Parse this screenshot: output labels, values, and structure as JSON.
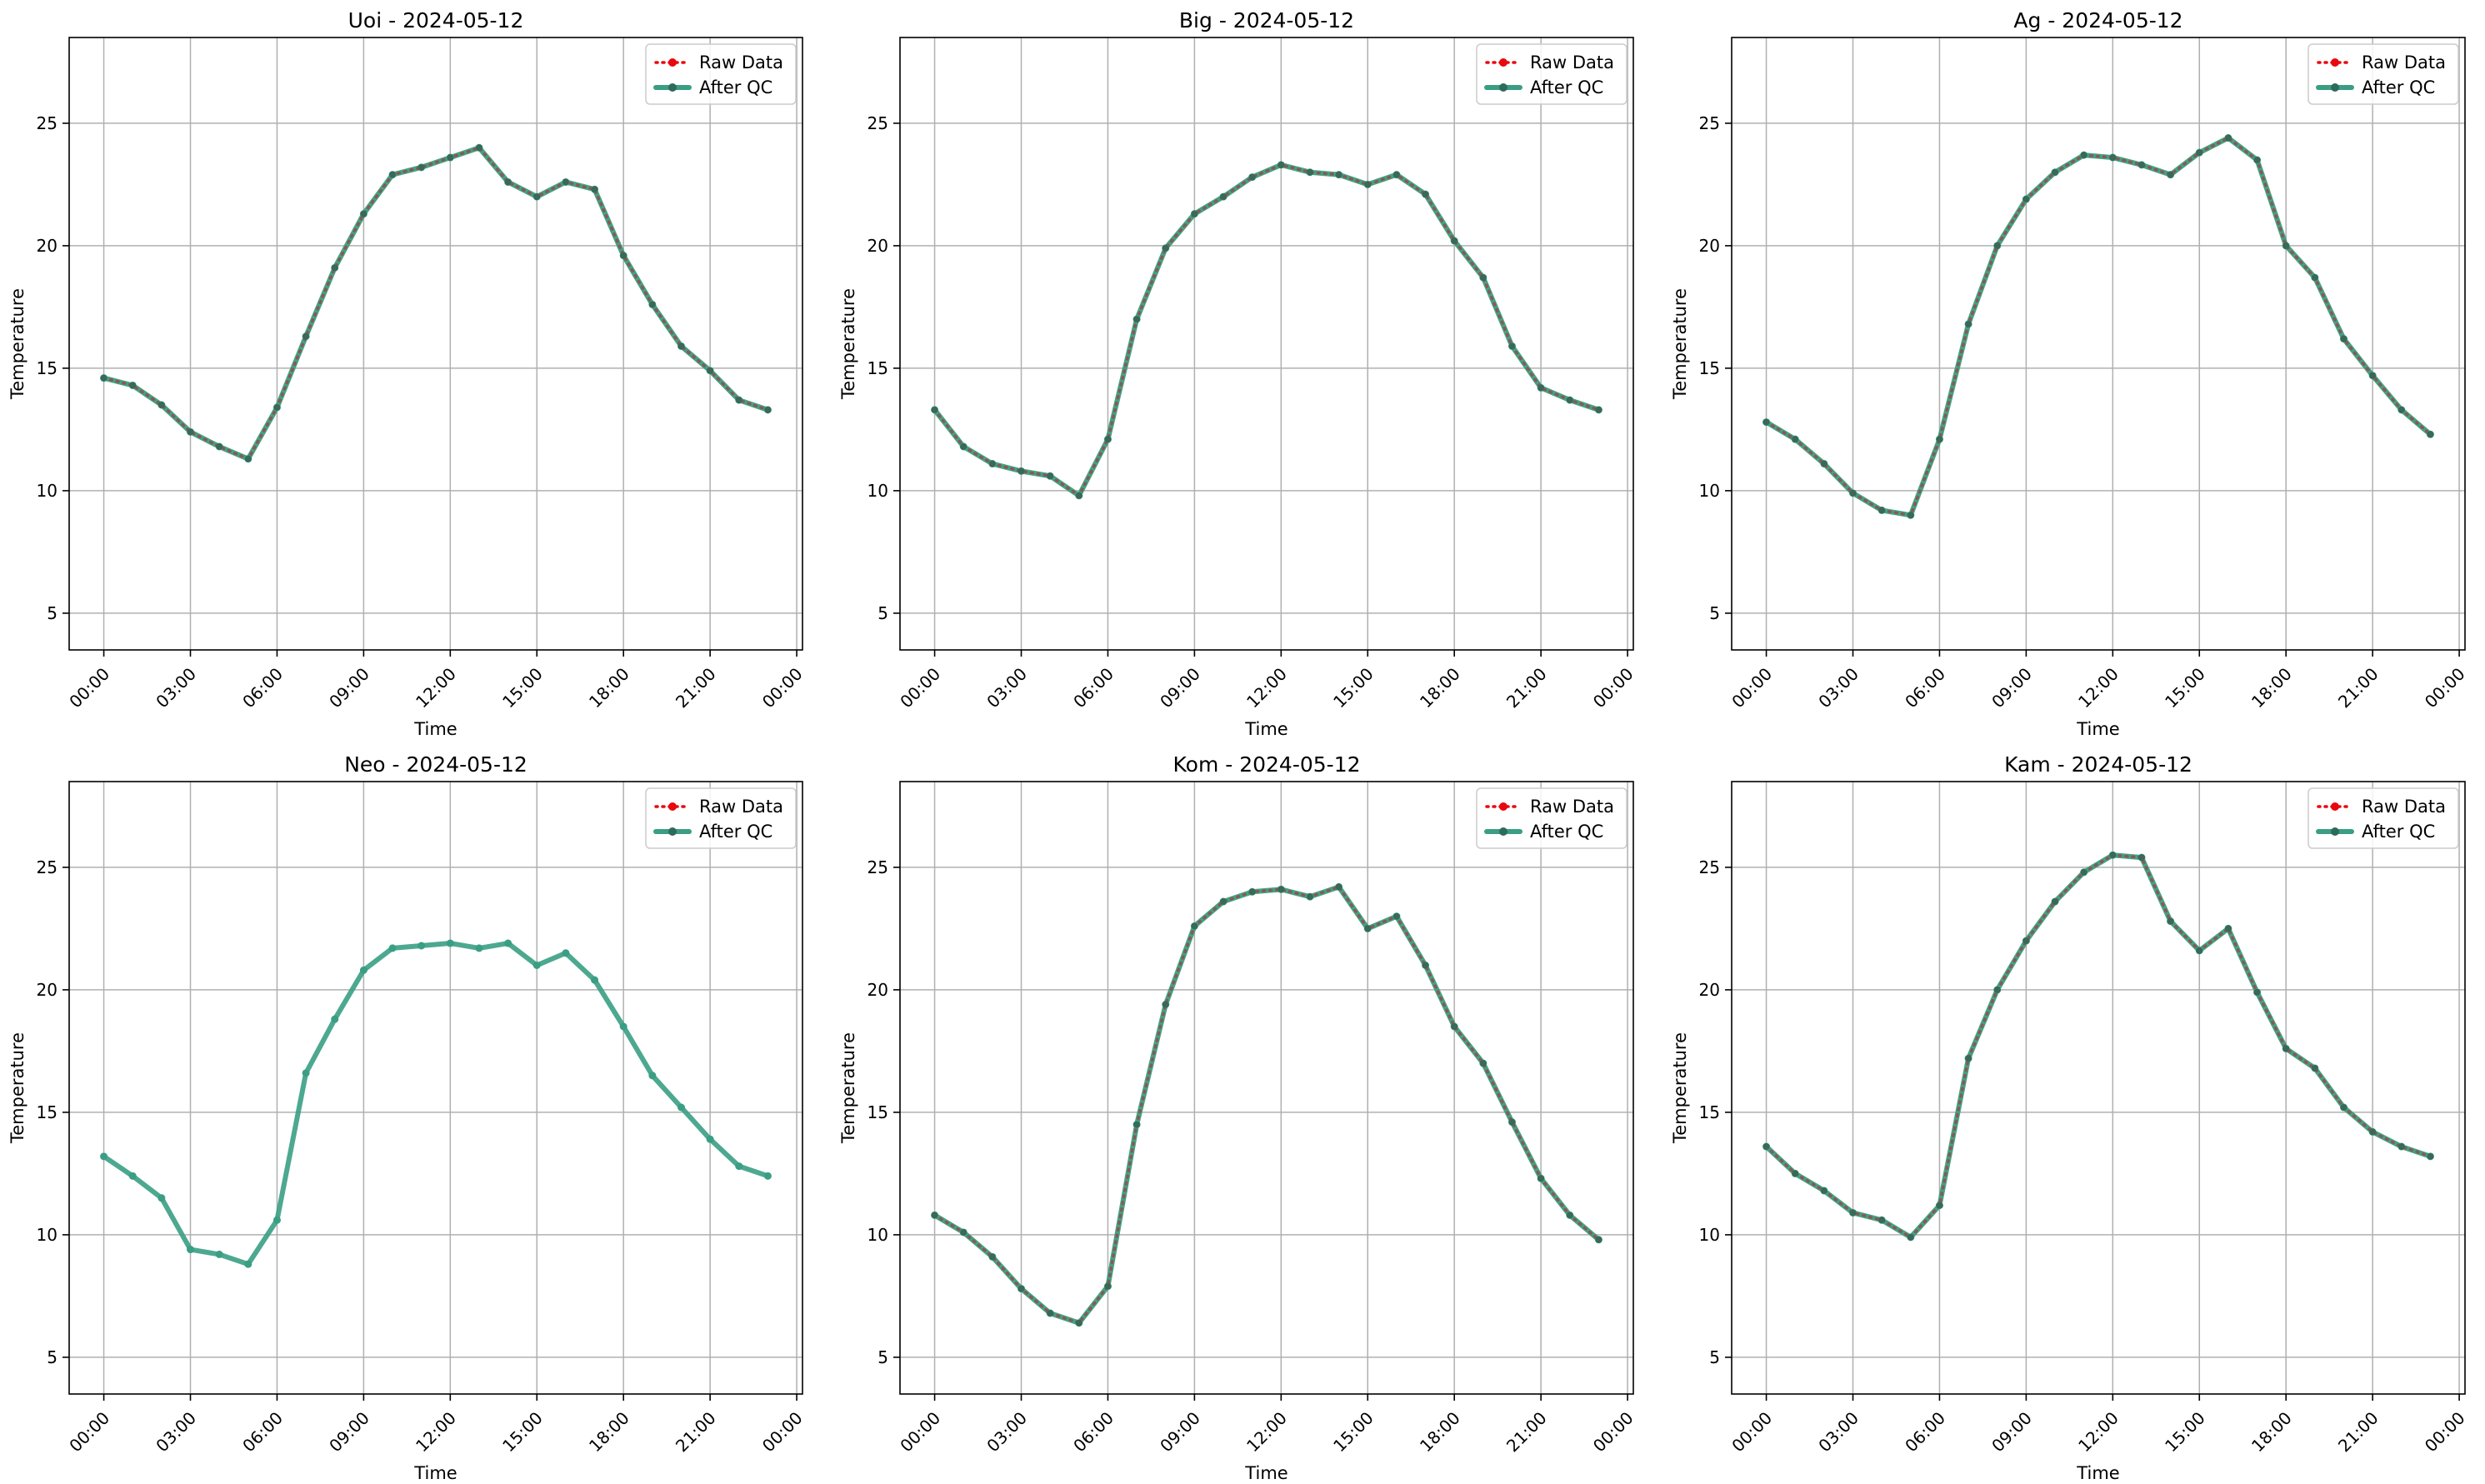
{
  "colors": {
    "raw": "#e8080f",
    "qc": "#3a9e84",
    "grid": "#b0b0b0",
    "legend_border": "#cccccc"
  },
  "chart_data": [
    {
      "type": "line",
      "title": "Uoi - 2024-05-12",
      "xlabel": "Time",
      "ylabel": "Temperature",
      "x_ticks": [
        "00:00",
        "03:00",
        "06:00",
        "09:00",
        "12:00",
        "15:00",
        "18:00",
        "21:00",
        "00:00"
      ],
      "y_ticks": [
        "5",
        "10",
        "15",
        "20",
        "25"
      ],
      "ylim": [
        3.5,
        28.5
      ],
      "xlim_hours": [
        -1.2,
        24.2
      ],
      "grid": true,
      "legend_position": "top-right",
      "legend": [
        "Raw Data",
        "After QC"
      ],
      "x_hours": [
        0,
        1,
        2,
        3,
        4,
        5,
        6,
        7,
        8,
        9,
        10,
        11,
        12,
        13,
        14,
        15,
        16,
        17,
        18,
        19,
        20,
        21,
        22,
        23
      ],
      "series": [
        {
          "name": "Raw Data",
          "values": [
            14.6,
            14.3,
            13.5,
            12.4,
            11.8,
            11.3,
            13.4,
            16.3,
            19.1,
            21.3,
            22.9,
            23.2,
            23.6,
            24.0,
            22.6,
            22.0,
            22.6,
            22.3,
            19.6,
            17.6,
            15.9,
            14.9,
            13.7,
            13.3
          ]
        },
        {
          "name": "After QC",
          "values": [
            14.6,
            14.3,
            13.5,
            12.4,
            11.8,
            11.3,
            13.4,
            16.3,
            19.1,
            21.3,
            22.9,
            23.2,
            23.6,
            24.0,
            22.6,
            22.0,
            22.6,
            22.3,
            19.6,
            17.6,
            15.9,
            14.9,
            13.7,
            13.3
          ]
        }
      ]
    },
    {
      "type": "line",
      "title": "Big - 2024-05-12",
      "xlabel": "Time",
      "ylabel": "Temperature",
      "x_ticks": [
        "00:00",
        "03:00",
        "06:00",
        "09:00",
        "12:00",
        "15:00",
        "18:00",
        "21:00",
        "00:00"
      ],
      "y_ticks": [
        "5",
        "10",
        "15",
        "20",
        "25"
      ],
      "ylim": [
        3.5,
        28.5
      ],
      "xlim_hours": [
        -1.2,
        24.2
      ],
      "grid": true,
      "legend_position": "top-right",
      "legend": [
        "Raw Data",
        "After QC"
      ],
      "x_hours": [
        0,
        1,
        2,
        3,
        4,
        5,
        6,
        7,
        8,
        9,
        10,
        11,
        12,
        13,
        14,
        15,
        16,
        17,
        18,
        19,
        20,
        21,
        22,
        23
      ],
      "series": [
        {
          "name": "Raw Data",
          "values": [
            13.3,
            11.8,
            11.1,
            10.8,
            10.6,
            9.8,
            12.1,
            17.0,
            19.9,
            21.3,
            22.0,
            22.8,
            23.3,
            23.0,
            22.9,
            22.5,
            22.9,
            22.1,
            20.2,
            18.7,
            15.9,
            14.2,
            13.7,
            13.3
          ]
        },
        {
          "name": "After QC",
          "values": [
            13.3,
            11.8,
            11.1,
            10.8,
            10.6,
            9.8,
            12.1,
            17.0,
            19.9,
            21.3,
            22.0,
            22.8,
            23.3,
            23.0,
            22.9,
            22.5,
            22.9,
            22.1,
            20.2,
            18.7,
            15.9,
            14.2,
            13.7,
            13.3
          ]
        }
      ]
    },
    {
      "type": "line",
      "title": "Ag - 2024-05-12",
      "xlabel": "Time",
      "ylabel": "Temperature",
      "x_ticks": [
        "00:00",
        "03:00",
        "06:00",
        "09:00",
        "12:00",
        "15:00",
        "18:00",
        "21:00",
        "00:00"
      ],
      "y_ticks": [
        "5",
        "10",
        "15",
        "20",
        "25"
      ],
      "ylim": [
        3.5,
        28.5
      ],
      "xlim_hours": [
        -1.2,
        24.2
      ],
      "grid": true,
      "legend_position": "top-right",
      "legend": [
        "Raw Data",
        "After QC"
      ],
      "x_hours": [
        0,
        1,
        2,
        3,
        4,
        5,
        6,
        7,
        8,
        9,
        10,
        11,
        12,
        13,
        14,
        15,
        16,
        17,
        18,
        19,
        20,
        21,
        22,
        23
      ],
      "series": [
        {
          "name": "Raw Data",
          "values": [
            12.8,
            12.1,
            11.1,
            9.9,
            9.2,
            9.0,
            12.1,
            16.8,
            20.0,
            21.9,
            23.0,
            23.7,
            23.6,
            23.3,
            22.9,
            23.8,
            24.4,
            23.5,
            20.0,
            18.7,
            16.2,
            14.7,
            13.3,
            12.3
          ]
        },
        {
          "name": "After QC",
          "values": [
            12.8,
            12.1,
            11.1,
            9.9,
            9.2,
            9.0,
            12.1,
            16.8,
            20.0,
            21.9,
            23.0,
            23.7,
            23.6,
            23.3,
            22.9,
            23.8,
            24.4,
            23.5,
            20.0,
            18.7,
            16.2,
            14.7,
            13.3,
            12.3
          ]
        }
      ]
    },
    {
      "type": "line",
      "title": "Neo - 2024-05-12",
      "xlabel": "Time",
      "ylabel": "Temperature",
      "x_ticks": [
        "00:00",
        "03:00",
        "06:00",
        "09:00",
        "12:00",
        "15:00",
        "18:00",
        "21:00",
        "00:00"
      ],
      "y_ticks": [
        "5",
        "10",
        "15",
        "20",
        "25"
      ],
      "ylim": [
        3.5,
        28.5
      ],
      "xlim_hours": [
        -1.2,
        24.2
      ],
      "grid": true,
      "legend_position": "top-right",
      "legend": [
        "Raw Data",
        "After QC"
      ],
      "x_hours": [
        0,
        1,
        2,
        3,
        4,
        5,
        6,
        7,
        8,
        9,
        10,
        11,
        12,
        13,
        14,
        15,
        16,
        17,
        18,
        19,
        20,
        21,
        22,
        23
      ],
      "series": [
        {
          "name": "Raw Data",
          "values": [
            null,
            null,
            null,
            null,
            null,
            null,
            null,
            null,
            null,
            null,
            null,
            null,
            null,
            null,
            null,
            null,
            null,
            null,
            null,
            null,
            null,
            null,
            null,
            null
          ]
        },
        {
          "name": "After QC",
          "values": [
            13.2,
            12.4,
            11.5,
            9.4,
            9.2,
            8.8,
            10.6,
            16.6,
            18.8,
            20.8,
            21.7,
            21.8,
            21.9,
            21.7,
            21.9,
            21.0,
            21.5,
            20.4,
            18.5,
            16.5,
            15.2,
            13.9,
            12.8,
            12.4
          ]
        }
      ]
    },
    {
      "type": "line",
      "title": "Kom - 2024-05-12",
      "xlabel": "Time",
      "ylabel": "Temperature",
      "x_ticks": [
        "00:00",
        "03:00",
        "06:00",
        "09:00",
        "12:00",
        "15:00",
        "18:00",
        "21:00",
        "00:00"
      ],
      "y_ticks": [
        "5",
        "10",
        "15",
        "20",
        "25"
      ],
      "ylim": [
        3.5,
        28.5
      ],
      "xlim_hours": [
        -1.2,
        24.2
      ],
      "grid": true,
      "legend_position": "top-right",
      "legend": [
        "Raw Data",
        "After QC"
      ],
      "x_hours": [
        0,
        1,
        2,
        3,
        4,
        5,
        6,
        7,
        8,
        9,
        10,
        11,
        12,
        13,
        14,
        15,
        16,
        17,
        18,
        19,
        20,
        21,
        22,
        23
      ],
      "series": [
        {
          "name": "Raw Data",
          "values": [
            10.8,
            10.1,
            9.1,
            7.8,
            6.8,
            6.4,
            7.9,
            14.5,
            19.4,
            22.6,
            23.6,
            24.0,
            24.1,
            23.8,
            24.2,
            22.5,
            23.0,
            21.0,
            18.5,
            17.0,
            14.6,
            12.3,
            10.8,
            9.8
          ]
        },
        {
          "name": "After QC",
          "values": [
            10.8,
            10.1,
            9.1,
            7.8,
            6.8,
            6.4,
            7.9,
            14.5,
            19.4,
            22.6,
            23.6,
            24.0,
            24.1,
            23.8,
            24.2,
            22.5,
            23.0,
            21.0,
            18.5,
            17.0,
            14.6,
            12.3,
            10.8,
            9.8
          ]
        }
      ]
    },
    {
      "type": "line",
      "title": "Kam - 2024-05-12",
      "xlabel": "Time",
      "ylabel": "Temperature",
      "x_ticks": [
        "00:00",
        "03:00",
        "06:00",
        "09:00",
        "12:00",
        "15:00",
        "18:00",
        "21:00",
        "00:00"
      ],
      "y_ticks": [
        "5",
        "10",
        "15",
        "20",
        "25"
      ],
      "ylim": [
        3.5,
        28.5
      ],
      "xlim_hours": [
        -1.2,
        24.2
      ],
      "grid": true,
      "legend_position": "top-right",
      "legend": [
        "Raw Data",
        "After QC"
      ],
      "x_hours": [
        0,
        1,
        2,
        3,
        4,
        5,
        6,
        7,
        8,
        9,
        10,
        11,
        12,
        13,
        14,
        15,
        16,
        17,
        18,
        19,
        20,
        21,
        22,
        23
      ],
      "series": [
        {
          "name": "Raw Data",
          "values": [
            13.6,
            12.5,
            11.8,
            10.9,
            10.6,
            9.9,
            11.2,
            17.2,
            20.0,
            22.0,
            23.6,
            24.8,
            25.5,
            25.4,
            22.8,
            21.6,
            22.5,
            19.9,
            17.6,
            16.8,
            15.2,
            14.2,
            13.6,
            13.2
          ]
        },
        {
          "name": "After QC",
          "values": [
            13.6,
            12.5,
            11.8,
            10.9,
            10.6,
            9.9,
            11.2,
            17.2,
            20.0,
            22.0,
            23.6,
            24.8,
            25.5,
            25.4,
            22.8,
            21.6,
            22.5,
            19.9,
            17.6,
            16.8,
            15.2,
            14.2,
            13.6,
            13.2
          ]
        }
      ]
    }
  ]
}
